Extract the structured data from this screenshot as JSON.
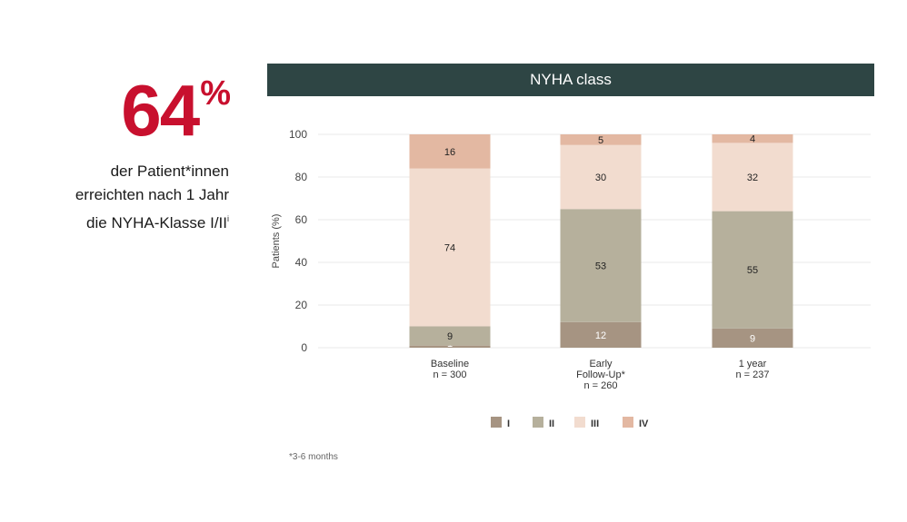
{
  "headline": {
    "value": "64",
    "unit": "%",
    "lines": [
      "der Patient*innen",
      "erreichten nach 1 Jahr",
      "die NYHA-Klasse I/II"
    ],
    "superscript": "i"
  },
  "chart_data": {
    "type": "bar",
    "stacked": true,
    "title": "NYHA class",
    "ylabel": "Patients (%)",
    "xlabel": "",
    "ylim": [
      0,
      100
    ],
    "yticks": [
      0,
      20,
      40,
      60,
      80,
      100
    ],
    "categories": [
      [
        "Baseline",
        "n = 300"
      ],
      [
        "Early",
        "Follow-Up*",
        "n = 260"
      ],
      [
        "1 year",
        "n = 237"
      ]
    ],
    "series": [
      {
        "name": "I",
        "values": [
          1,
          12,
          9
        ],
        "color": "#a69482"
      },
      {
        "name": "II",
        "values": [
          9,
          53,
          55
        ],
        "color": "#b6b09c"
      },
      {
        "name": "III",
        "values": [
          74,
          30,
          32
        ],
        "color": "#f2dccf"
      },
      {
        "name": "IV",
        "values": [
          16,
          5,
          4
        ],
        "color": "#e3b8a2"
      }
    ],
    "legend_position": "bottom-center",
    "label_colors": {
      "I": "#ffffff",
      "II": "#222222",
      "III": "#222222",
      "IV": "#222222"
    }
  },
  "footnote": "*3-6 months"
}
